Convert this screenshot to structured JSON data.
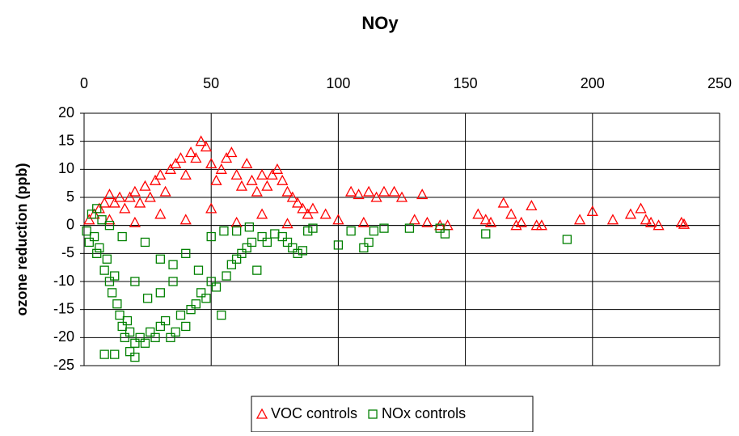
{
  "chart_data": {
    "type": "scatter",
    "title": "NOy",
    "y_label": "ozone reduction (ppb)",
    "xlim": [
      0,
      250
    ],
    "xticks": [
      0,
      50,
      100,
      150,
      200,
      250
    ],
    "ylim": [
      -25,
      20
    ],
    "yticks": [
      -25,
      -20,
      -15,
      -10,
      -5,
      0,
      5,
      10,
      15,
      20
    ],
    "grid": true,
    "x_axis_position": "top",
    "legend_position": "bottom",
    "series": [
      {
        "name": "VOC controls",
        "color": "#ff0000",
        "marker": "triangle",
        "x": [
          2,
          4,
          6,
          8,
          10,
          12,
          14,
          16,
          18,
          20,
          22,
          24,
          26,
          28,
          30,
          32,
          34,
          36,
          38,
          40,
          42,
          44,
          46,
          48,
          50,
          52,
          54,
          56,
          58,
          60,
          62,
          64,
          66,
          68,
          70,
          72,
          74,
          76,
          78,
          80,
          82,
          84,
          86,
          88,
          90,
          95,
          100,
          105,
          108,
          112,
          115,
          118,
          122,
          125,
          133,
          130,
          135,
          140,
          143,
          155,
          158,
          160,
          165,
          168,
          170,
          172,
          176,
          178,
          180,
          195,
          200,
          208,
          215,
          219,
          221,
          223,
          226,
          235,
          236,
          20,
          40,
          60,
          80,
          30,
          50,
          70,
          10,
          110
        ],
        "y": [
          1,
          2,
          3,
          4,
          5.5,
          4,
          5,
          3,
          5,
          6,
          4,
          7,
          5,
          8,
          9,
          6,
          10,
          11,
          12,
          9,
          13,
          12,
          15,
          14,
          11,
          8,
          10,
          12,
          13,
          9,
          7,
          11,
          8,
          6,
          9,
          7,
          9,
          10,
          8,
          6,
          5,
          4,
          3,
          2,
          3,
          2,
          1,
          6,
          5.5,
          6,
          5,
          6,
          6,
          5,
          5.5,
          1,
          0.5,
          0,
          0,
          2,
          1,
          0.5,
          4,
          2,
          0,
          0.5,
          3.5,
          0,
          0,
          1,
          2.5,
          1,
          2,
          3,
          1,
          0.5,
          0,
          0.5,
          0.2,
          0.5,
          1,
          0.5,
          0.3,
          2,
          3,
          2,
          1,
          0.5
        ]
      },
      {
        "name": "NOx controls",
        "color": "#008000",
        "marker": "square",
        "x": [
          1,
          2,
          4,
          5,
          6,
          8,
          9,
          10,
          11,
          12,
          13,
          14,
          15,
          16,
          17,
          18,
          20,
          22,
          24,
          26,
          28,
          30,
          32,
          34,
          36,
          38,
          40,
          42,
          44,
          46,
          48,
          50,
          52,
          54,
          56,
          58,
          60,
          62,
          64,
          66,
          68,
          70,
          72,
          75,
          78,
          80,
          82,
          84,
          86,
          88,
          90,
          100,
          105,
          110,
          112,
          114,
          118,
          128,
          140,
          142,
          158,
          190,
          8,
          12,
          20,
          18,
          24,
          30,
          35,
          40,
          60,
          65,
          20,
          25,
          30,
          35,
          45,
          3,
          5,
          7,
          10,
          15,
          50,
          55
        ],
        "y": [
          -1,
          -3,
          -2,
          -5,
          -4,
          -8,
          -6,
          -10,
          -12,
          -9,
          -14,
          -16,
          -18,
          -20,
          -17,
          -19,
          -21,
          -20,
          -21,
          -19,
          -20,
          -18,
          -17,
          -20,
          -19,
          -16,
          -18,
          -15,
          -14,
          -12,
          -13,
          -10,
          -11,
          -16,
          -9,
          -7,
          -6,
          -5,
          -4,
          -3,
          -8,
          -2,
          -3,
          -1.5,
          -2,
          -3,
          -4,
          -5,
          -4.5,
          -1,
          -0.5,
          -3.5,
          -1,
          -4,
          -3,
          -1,
          -0.5,
          -0.5,
          -0.5,
          -1.5,
          -1.5,
          -2.5,
          -23,
          -23,
          -23.5,
          -22.5,
          -3,
          -6,
          -7,
          -5,
          -1,
          -0.3,
          -10,
          -13,
          -12,
          -10,
          -8,
          2,
          3,
          1,
          0,
          -2,
          -2,
          -1
        ]
      }
    ]
  }
}
